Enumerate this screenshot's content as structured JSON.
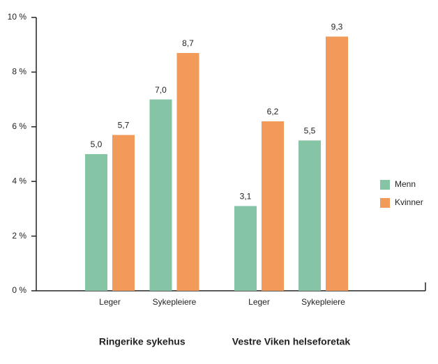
{
  "chart_data": {
    "type": "grouped_bar",
    "groups": [
      "Ringerike sykehus",
      "Vestre Viken helseforetak"
    ],
    "categories": [
      "Leger",
      "Sykepleiere",
      "Leger",
      "Sykepleiere"
    ],
    "series": [
      {
        "name": "Menn",
        "color": "#85c4a5",
        "values": [
          5.0,
          7.0,
          3.1,
          5.5
        ],
        "value_labels": [
          "5,0",
          "7,0",
          "3,1",
          "5,5"
        ]
      },
      {
        "name": "Kvinner",
        "color": "#f29a5a",
        "values": [
          5.7,
          8.7,
          6.2,
          9.3
        ],
        "value_labels": [
          "5,7",
          "8,7",
          "6,2",
          "9,3"
        ]
      }
    ],
    "ylim": [
      0,
      10
    ],
    "yticks": [
      {
        "value": 0,
        "label": "0 %"
      },
      {
        "value": 2,
        "label": "2 %"
      },
      {
        "value": 4,
        "label": "4 %"
      },
      {
        "value": 6,
        "label": "6 %"
      },
      {
        "value": 8,
        "label": "8 %"
      },
      {
        "value": 10,
        "label": "10 %"
      }
    ],
    "legend": "right"
  }
}
